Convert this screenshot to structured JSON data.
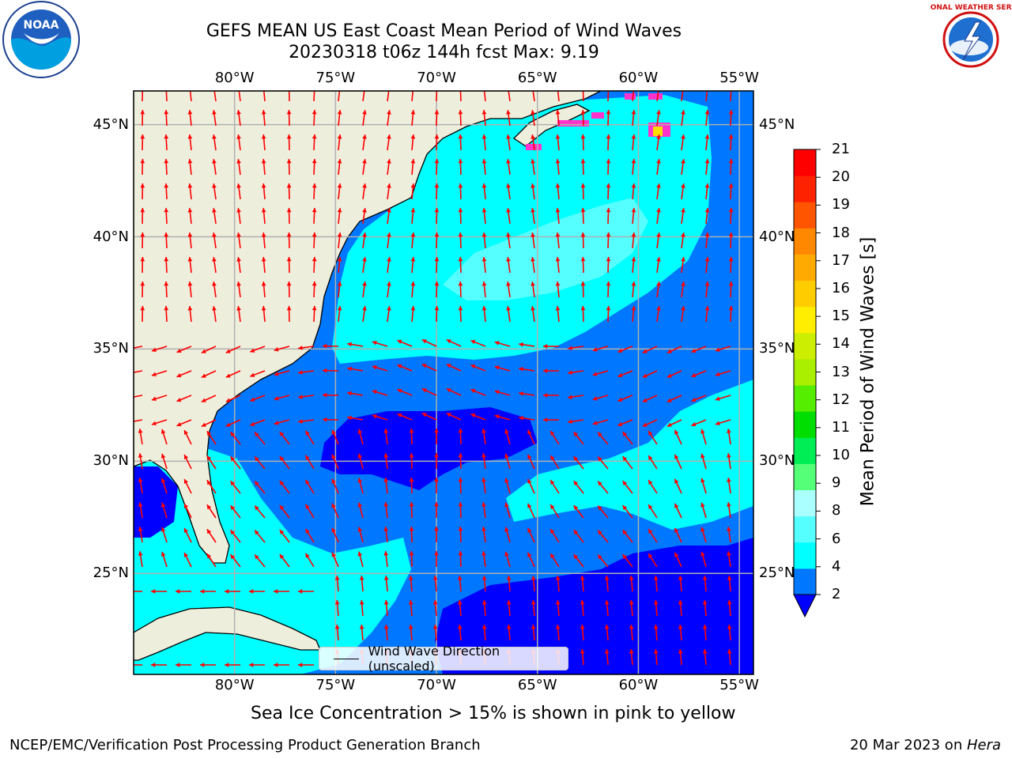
{
  "title": "GEFS MEAN US East Coast Mean Period of Wind Waves",
  "subtitle": "20230318 t06z 144h fcst   Max: 9.19",
  "logos": {
    "left": {
      "name": "NOAA",
      "text": "NOAA"
    },
    "right": {
      "name": "National Weather Service",
      "text": "NATIONAL WEATHER SERVICE"
    }
  },
  "map": {
    "lon_ticks": [
      "80°W",
      "75°W",
      "70°W",
      "65°W",
      "60°W",
      "55°W"
    ],
    "lat_ticks": [
      "45°N",
      "40°N",
      "35°N",
      "30°N",
      "25°N"
    ],
    "extent": {
      "lon": [
        -85,
        -54.3
      ],
      "lat": [
        20.5,
        46.5
      ]
    },
    "land_color": "#eeeedd",
    "arrow_color": "#ff0000"
  },
  "legend": {
    "label": "Wind Wave Direction (unscaled)"
  },
  "colorbar": {
    "label": "Mean Period of Wind Waves [s]",
    "ticks": [
      "2",
      "4",
      "6",
      "8",
      "9",
      "10",
      "11",
      "12",
      "13",
      "14",
      "15",
      "16",
      "17",
      "18",
      "19",
      "20",
      "21"
    ],
    "colors": [
      "#0000ff",
      "#0077ff",
      "#00ffff",
      "#55ffff",
      "#aaffff",
      "#55ff77",
      "#00ee55",
      "#00dd00",
      "#55ee00",
      "#aaee00",
      "#ccee00",
      "#ffee00",
      "#ffcc00",
      "#ffaa00",
      "#ff8800",
      "#ff5500",
      "#ff2200",
      "#ff0000"
    ]
  },
  "annotation": "Sea Ice Concentration > 15% is shown in pink to yellow",
  "footer": {
    "left": "NCEP/EMC/Verification Post Processing Product Generation Branch",
    "right_date": "20 Mar 2023 on ",
    "right_machine": "Hera"
  }
}
